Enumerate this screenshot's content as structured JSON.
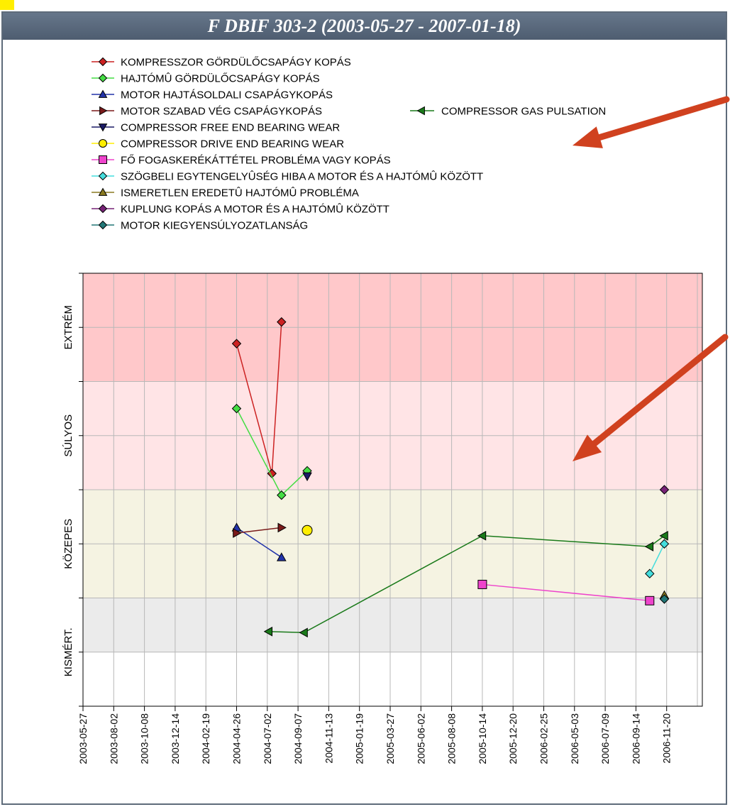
{
  "window": {
    "title": "F DBIF 303-2 (2003-05-27  -  2007-01-18)"
  },
  "chart_data": {
    "type": "line",
    "title": "F DBIF 303-2 (2003-05-27  -  2007-01-18)",
    "bands": [
      {
        "label": "KISMÉRT.",
        "color": "#ebebeb",
        "range": [
          0,
          1
        ]
      },
      {
        "label": "KÖZEPES",
        "color": "#f5f3e2",
        "range": [
          1,
          3
        ]
      },
      {
        "label": "SÚLYOS",
        "color": "#ffe4e6",
        "range": [
          3,
          5
        ]
      },
      {
        "label": "EXTRÉM",
        "color": "#ffc8ca",
        "range": [
          5,
          7
        ]
      }
    ],
    "ylim": [
      -1,
      7
    ],
    "y_labels": [
      {
        "label": "KISMÉRT.",
        "y": 0
      },
      {
        "label": "KÖZEPES",
        "y": 2
      },
      {
        "label": "SÚLYOS",
        "y": 4
      },
      {
        "label": "EXTRÉM",
        "y": 6
      }
    ],
    "x_start": "2003-05-27",
    "x_ticks": [
      "2003-05-27",
      "2003-08-02",
      "2003-10-08",
      "2003-12-14",
      "2004-02-19",
      "2004-04-26",
      "2004-07-02",
      "2004-09-07",
      "2004-11-13",
      "2005-01-19",
      "2005-03-27",
      "2005-06-02",
      "2005-08-08",
      "2005-10-14",
      "2005-12-20",
      "2006-02-25",
      "2006-05-03",
      "2006-07-09",
      "2006-09-14",
      "2006-11-20"
    ],
    "grid": true,
    "legend_position": "top-left",
    "series": [
      {
        "name": "KOMPRESSZOR GÖRDÜLŐCSAPÁGY KOPÁS",
        "color": "#cc2222",
        "marker": "diamond",
        "points": [
          [
            "2004-04-26",
            5.7
          ],
          [
            "2004-07-12",
            3.3
          ],
          [
            "2004-08-02",
            6.1
          ]
        ]
      },
      {
        "name": "HAJTÓMÛ GÖRDÜLŐCSAPÁGY KOPÁS",
        "color": "#44dd44",
        "marker": "diamond",
        "points": [
          [
            "2004-04-26",
            4.5
          ],
          [
            "2004-08-02",
            2.9
          ],
          [
            "2004-09-27",
            3.35
          ]
        ]
      },
      {
        "name": "MOTOR HAJTÁSOLDALI CSAPÁGYKOPÁS",
        "color": "#2233aa",
        "marker": "triangle-up",
        "points": [
          [
            "2004-04-26",
            2.3
          ],
          [
            "2004-08-02",
            1.75
          ]
        ]
      },
      {
        "name": "MOTOR SZABAD VÉG CSAPÁGYKOPÁS",
        "color": "#7a1a1a",
        "marker": "triangle-right",
        "points": [
          [
            "2004-04-26",
            2.2
          ],
          [
            "2004-08-02",
            2.3
          ]
        ]
      },
      {
        "name": "COMPRESSOR FREE END BEARING WEAR",
        "color": "#1a1a66",
        "marker": "triangle-down",
        "points": [
          [
            "2004-09-27",
            3.25
          ]
        ]
      },
      {
        "name": "COMPRESSOR DRIVE END BEARING WEAR",
        "color": "#ffee00",
        "marker": "circle",
        "points": [
          [
            "2004-09-27",
            2.25
          ]
        ]
      },
      {
        "name": "FŐ FOGASKERÉKÁTTÉTEL PROBLÉMA VAGY KOPÁS",
        "color": "#ee44cc",
        "marker": "square",
        "points": [
          [
            "2005-10-14",
            1.25
          ],
          [
            "2006-10-14",
            0.95
          ]
        ]
      },
      {
        "name": "SZÖGBELI EGYTENGELYÛSÉG HIBA A MOTOR ÉS A HAJTÓMÛ KÖZÖTT",
        "color": "#44dddd",
        "marker": "diamond",
        "points": [
          [
            "2006-10-14",
            1.45
          ],
          [
            "2006-11-15",
            2.0
          ]
        ]
      },
      {
        "name": "ISMERETLEN EREDETÛ HAJTÓMÛ PROBLÉMA",
        "color": "#8a7a20",
        "marker": "triangle-up",
        "points": [
          [
            "2006-11-15",
            1.05
          ]
        ]
      },
      {
        "name": "KUPLUNG KOPÁS A MOTOR ÉS A HAJTÓMÛ KÖZÖTT",
        "color": "#772277",
        "marker": "diamond",
        "points": [
          [
            "2006-11-15",
            3.0
          ]
        ]
      },
      {
        "name": "MOTOR KIEGYENSÚLYOZATLANSÁG",
        "color": "#227777",
        "marker": "diamond",
        "points": [
          [
            "2006-11-15",
            0.98
          ]
        ]
      },
      {
        "name": "COMPRESSOR GAS PULSATION",
        "color": "#1a7a1a",
        "marker": "triangle-left",
        "points": [
          [
            "2004-07-05",
            0.38
          ],
          [
            "2004-09-20",
            0.36
          ],
          [
            "2005-10-14",
            2.15
          ],
          [
            "2006-10-14",
            1.95
          ],
          [
            "2006-11-15",
            2.15
          ]
        ]
      }
    ]
  },
  "annotations": {
    "arrow_color": "#d0411f",
    "accent_color": "#ffee00"
  }
}
